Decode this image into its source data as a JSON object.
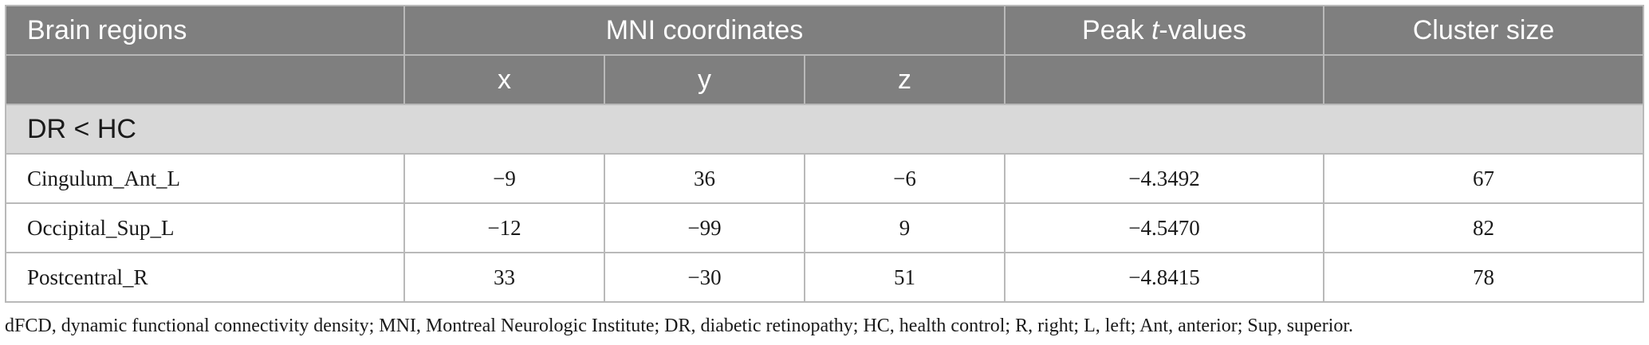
{
  "table": {
    "headers": {
      "brain_regions": "Brain regions",
      "mni_coordinates": "MNI coordinates",
      "peak_prefix": "Peak ",
      "peak_italic": "t",
      "peak_suffix": "-values",
      "cluster_size": "Cluster size"
    },
    "subheaders": {
      "x": "x",
      "y": "y",
      "z": "z"
    },
    "group_label": "DR < HC",
    "rows": [
      {
        "region": "Cingulum_Ant_L",
        "x": "−9",
        "y": "36",
        "z": "−6",
        "peak_t": "−4.3492",
        "cluster_size": "67"
      },
      {
        "region": "Occipital_Sup_L",
        "x": "−12",
        "y": "−99",
        "z": "9",
        "peak_t": "−4.5470",
        "cluster_size": "82"
      },
      {
        "region": "Postcentral_R",
        "x": "33",
        "y": "−30",
        "z": "51",
        "peak_t": "−4.8415",
        "cluster_size": "78"
      }
    ]
  },
  "footnote": "dFCD, dynamic functional connectivity density; MNI, Montreal Neurologic Institute; DR, diabetic retinopathy; HC, health control; R, right; L, left; Ant, anterior; Sup, superior.",
  "colors": {
    "header_bg": "#7f7f7f",
    "group_bg": "#d9d9d9",
    "border": "#b9b9b9"
  }
}
